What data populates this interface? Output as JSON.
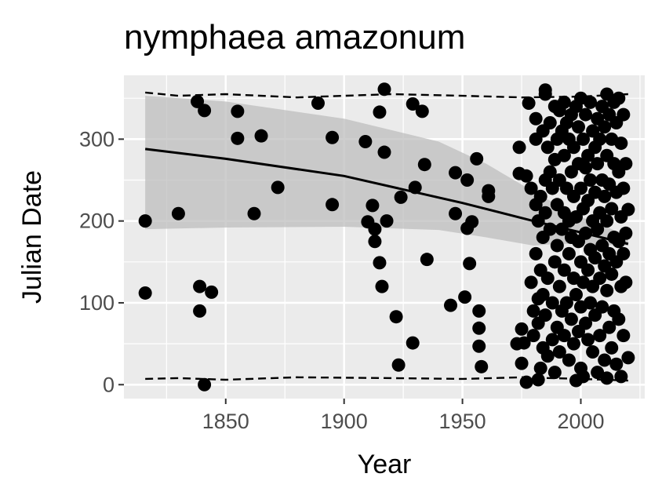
{
  "chart_data": {
    "type": "scatter",
    "title": "nymphaea amazonum",
    "xlabel": "Year",
    "ylabel": "Julian Date",
    "xlim": [
      1807,
      2027
    ],
    "ylim": [
      -17,
      378
    ],
    "x_ticks": [
      1850,
      1900,
      1950,
      2000
    ],
    "y_ticks": [
      0,
      100,
      200,
      300
    ],
    "grid": true,
    "legend": "none",
    "colors": {
      "panel": "#ebebeb",
      "grid": "#ffffff",
      "points": "#000000",
      "ribbon": "#bdbdbd",
      "fit_line": "#000000"
    },
    "points": [
      [
        1816,
        200
      ],
      [
        1816,
        112
      ],
      [
        1830,
        209
      ],
      [
        1838,
        346
      ],
      [
        1839,
        120
      ],
      [
        1839,
        90
      ],
      [
        1841,
        335
      ],
      [
        1841,
        0
      ],
      [
        1844,
        113
      ],
      [
        1855,
        334
      ],
      [
        1855,
        301
      ],
      [
        1862,
        209
      ],
      [
        1865,
        304
      ],
      [
        1872,
        241
      ],
      [
        1889,
        344
      ],
      [
        1895,
        302
      ],
      [
        1895,
        220
      ],
      [
        1909,
        297
      ],
      [
        1910,
        199
      ],
      [
        1912,
        219
      ],
      [
        1913,
        175
      ],
      [
        1913,
        190
      ],
      [
        1915,
        333
      ],
      [
        1915,
        149
      ],
      [
        1916,
        120
      ],
      [
        1917,
        361
      ],
      [
        1917,
        284
      ],
      [
        1918,
        200
      ],
      [
        1922,
        83
      ],
      [
        1923,
        24
      ],
      [
        1924,
        229
      ],
      [
        1929,
        51
      ],
      [
        1929,
        343
      ],
      [
        1930,
        241
      ],
      [
        1933,
        334
      ],
      [
        1934,
        269
      ],
      [
        1935,
        153
      ],
      [
        1945,
        97
      ],
      [
        1947,
        259
      ],
      [
        1947,
        209
      ],
      [
        1951,
        107
      ],
      [
        1952,
        250
      ],
      [
        1952,
        191
      ],
      [
        1953,
        148
      ],
      [
        1954,
        199
      ],
      [
        1956,
        276
      ],
      [
        1957,
        90
      ],
      [
        1957,
        69
      ],
      [
        1957,
        47
      ],
      [
        1958,
        22
      ],
      [
        1961,
        237
      ],
      [
        1961,
        230
      ],
      [
        1973,
        50
      ],
      [
        1974,
        258
      ],
      [
        1974,
        290
      ],
      [
        1975,
        68
      ],
      [
        1975,
        26
      ],
      [
        1976,
        51
      ],
      [
        1977,
        255
      ],
      [
        1977,
        3
      ],
      [
        1978,
        344
      ],
      [
        1979,
        240
      ],
      [
        1979,
        125
      ],
      [
        1980,
        90
      ],
      [
        1980,
        60
      ],
      [
        1981,
        325
      ],
      [
        1981,
        300
      ],
      [
        1981,
        220
      ],
      [
        1981,
        160
      ],
      [
        1982,
        200
      ],
      [
        1982,
        105
      ],
      [
        1982,
        75
      ],
      [
        1982,
        6
      ],
      [
        1983,
        230
      ],
      [
        1983,
        140
      ],
      [
        1983,
        20
      ],
      [
        1984,
        310
      ],
      [
        1984,
        180
      ],
      [
        1984,
        110
      ],
      [
        1984,
        45
      ],
      [
        1985,
        355
      ],
      [
        1985,
        360
      ],
      [
        1985,
        250
      ],
      [
        1985,
        210
      ],
      [
        1985,
        85
      ],
      [
        1986,
        290
      ],
      [
        1986,
        130
      ],
      [
        1986,
        35
      ],
      [
        1987,
        320
      ],
      [
        1987,
        260
      ],
      [
        1987,
        190
      ],
      [
        1988,
        240
      ],
      [
        1988,
        100
      ],
      [
        1988,
        55
      ],
      [
        1989,
        340
      ],
      [
        1989,
        275
      ],
      [
        1989,
        150
      ],
      [
        1989,
        15
      ],
      [
        1990,
        300
      ],
      [
        1990,
        220
      ],
      [
        1990,
        170
      ],
      [
        1990,
        70
      ],
      [
        1991,
        335
      ],
      [
        1991,
        250
      ],
      [
        1991,
        120
      ],
      [
        1991,
        40
      ],
      [
        1992,
        310
      ],
      [
        1992,
        190
      ],
      [
        1992,
        90
      ],
      [
        1993,
        345
      ],
      [
        1993,
        280
      ],
      [
        1993,
        210
      ],
      [
        1993,
        140
      ],
      [
        1993,
        60
      ],
      [
        1994,
        320
      ],
      [
        1994,
        240
      ],
      [
        1994,
        100
      ],
      [
        1995,
        300
      ],
      [
        1995,
        200
      ],
      [
        1995,
        160
      ],
      [
        1995,
        30
      ],
      [
        1996,
        330
      ],
      [
        1996,
        260
      ],
      [
        1996,
        180
      ],
      [
        1996,
        80
      ],
      [
        1997,
        290
      ],
      [
        1997,
        230
      ],
      [
        1997,
        130
      ],
      [
        1997,
        50
      ],
      [
        1998,
        340
      ],
      [
        1998,
        205
      ],
      [
        1998,
        110
      ],
      [
        1998,
        5
      ],
      [
        1999,
        315
      ],
      [
        1999,
        270
      ],
      [
        1999,
        175
      ],
      [
        1999,
        65
      ],
      [
        2000,
        350
      ],
      [
        2000,
        240
      ],
      [
        2000,
        150
      ],
      [
        2000,
        95
      ],
      [
        2000,
        20
      ],
      [
        2001,
        300
      ],
      [
        2001,
        215
      ],
      [
        2001,
        125
      ],
      [
        2001,
        10
      ],
      [
        2002,
        330
      ],
      [
        2002,
        265
      ],
      [
        2002,
        185
      ],
      [
        2002,
        75
      ],
      [
        2003,
        280
      ],
      [
        2003,
        225
      ],
      [
        2003,
        140
      ],
      [
        2003,
        55
      ],
      [
        2004,
        345
      ],
      [
        2004,
        250
      ],
      [
        2004,
        165
      ],
      [
        2004,
        100
      ],
      [
        2005,
        310
      ],
      [
        2005,
        200
      ],
      [
        2005,
        120
      ],
      [
        2005,
        40
      ],
      [
        2006,
        290
      ],
      [
        2006,
        235
      ],
      [
        2006,
        155
      ],
      [
        2006,
        85
      ],
      [
        2007,
        325
      ],
      [
        2007,
        270
      ],
      [
        2007,
        190
      ],
      [
        2007,
        15
      ],
      [
        2008,
        300
      ],
      [
        2008,
        210
      ],
      [
        2008,
        130
      ],
      [
        2008,
        60
      ],
      [
        2009,
        340
      ],
      [
        2009,
        250
      ],
      [
        2009,
        170
      ],
      [
        2009,
        95
      ],
      [
        2010,
        315
      ],
      [
        2010,
        230
      ],
      [
        2010,
        145
      ],
      [
        2010,
        30
      ],
      [
        2011,
        355
      ],
      [
        2011,
        280
      ],
      [
        2011,
        200
      ],
      [
        2011,
        115
      ],
      [
        2011,
        8
      ],
      [
        2012,
        330
      ],
      [
        2012,
        245
      ],
      [
        2012,
        160
      ],
      [
        2012,
        70
      ],
      [
        2013,
        300
      ],
      [
        2013,
        215
      ],
      [
        2013,
        135
      ],
      [
        2013,
        45
      ],
      [
        2014,
        345
      ],
      [
        2014,
        270
      ],
      [
        2014,
        180
      ],
      [
        2014,
        90
      ],
      [
        2015,
        320
      ],
      [
        2015,
        235
      ],
      [
        2015,
        150
      ],
      [
        2015,
        25
      ],
      [
        2016,
        350
      ],
      [
        2016,
        260
      ],
      [
        2016,
        175
      ],
      [
        2016,
        80
      ],
      [
        2017,
        295
      ],
      [
        2017,
        205
      ],
      [
        2017,
        120
      ],
      [
        2017,
        10
      ],
      [
        2018,
        330
      ],
      [
        2018,
        240
      ],
      [
        2018,
        160
      ],
      [
        2018,
        60
      ],
      [
        2019,
        270
      ],
      [
        2019,
        185
      ],
      [
        2019,
        125
      ],
      [
        2020,
        214
      ],
      [
        2020,
        33
      ]
    ],
    "fit_line": [
      [
        1816,
        288
      ],
      [
        1850,
        276
      ],
      [
        1900,
        255
      ],
      [
        1950,
        222
      ],
      [
        1980,
        200
      ],
      [
        2000,
        186
      ],
      [
        2020,
        172
      ]
    ],
    "fit_ribbon_upper": [
      [
        1816,
        353
      ],
      [
        1850,
        346
      ],
      [
        1900,
        325
      ],
      [
        1940,
        297
      ],
      [
        1960,
        270
      ],
      [
        1980,
        236
      ],
      [
        1990,
        220
      ],
      [
        2000,
        205
      ],
      [
        2020,
        182
      ]
    ],
    "fit_ribbon_lower": [
      [
        1816,
        190
      ],
      [
        1850,
        192
      ],
      [
        1900,
        193
      ],
      [
        1940,
        189
      ],
      [
        1960,
        180
      ],
      [
        1980,
        170
      ],
      [
        1990,
        172
      ],
      [
        2000,
        172
      ],
      [
        2020,
        170
      ]
    ],
    "dashed_upper": [
      [
        1816,
        357
      ],
      [
        1830,
        353
      ],
      [
        1850,
        355
      ],
      [
        1880,
        351
      ],
      [
        1920,
        355
      ],
      [
        1950,
        353
      ],
      [
        1975,
        351
      ],
      [
        2000,
        352
      ],
      [
        2020,
        355
      ]
    ],
    "dashed_lower": [
      [
        1816,
        7
      ],
      [
        1830,
        8
      ],
      [
        1850,
        6
      ],
      [
        1880,
        9
      ],
      [
        1920,
        8
      ],
      [
        1950,
        7
      ],
      [
        1975,
        9
      ],
      [
        2000,
        7
      ],
      [
        2020,
        5
      ]
    ]
  }
}
